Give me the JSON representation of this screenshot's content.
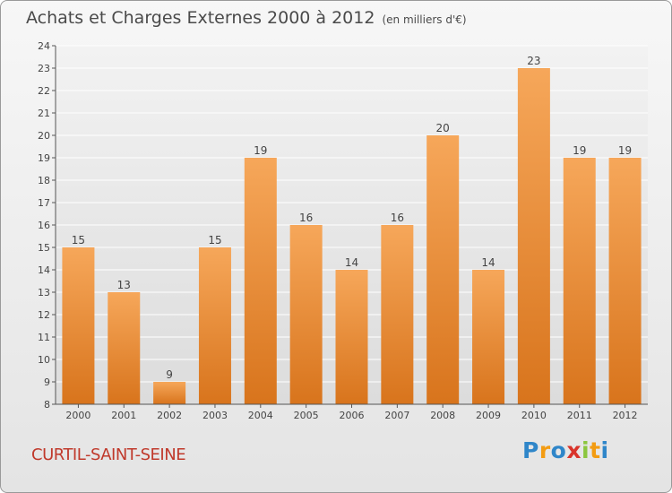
{
  "title": "Achats et Charges Externes 2000 à 2012",
  "subtitle": "(en milliers d'€)",
  "city": "CURTIL-SAINT-SEINE",
  "logo": {
    "letters": [
      "P",
      "r",
      "o",
      "x",
      "i",
      "t",
      "i"
    ],
    "colors": [
      "#2f86c9",
      "#f39c12",
      "#2f86c9",
      "#d9342b",
      "#8cc63f",
      "#f39c12",
      "#2f86c9"
    ]
  },
  "colors": {
    "bar_top": "#f6a75a",
    "bar_bottom": "#d8741c",
    "city": "#c0392b"
  },
  "chart_data": {
    "type": "bar",
    "categories": [
      "2000",
      "2001",
      "2002",
      "2003",
      "2004",
      "2005",
      "2006",
      "2007",
      "2008",
      "2009",
      "2010",
      "2011",
      "2012"
    ],
    "values": [
      15,
      13,
      9,
      15,
      19,
      16,
      14,
      16,
      20,
      14,
      23,
      19,
      19
    ],
    "ylim": [
      8,
      24
    ],
    "yticks": [
      8,
      9,
      10,
      11,
      12,
      13,
      14,
      15,
      16,
      17,
      18,
      19,
      20,
      21,
      22,
      23,
      24
    ],
    "grid": true
  }
}
